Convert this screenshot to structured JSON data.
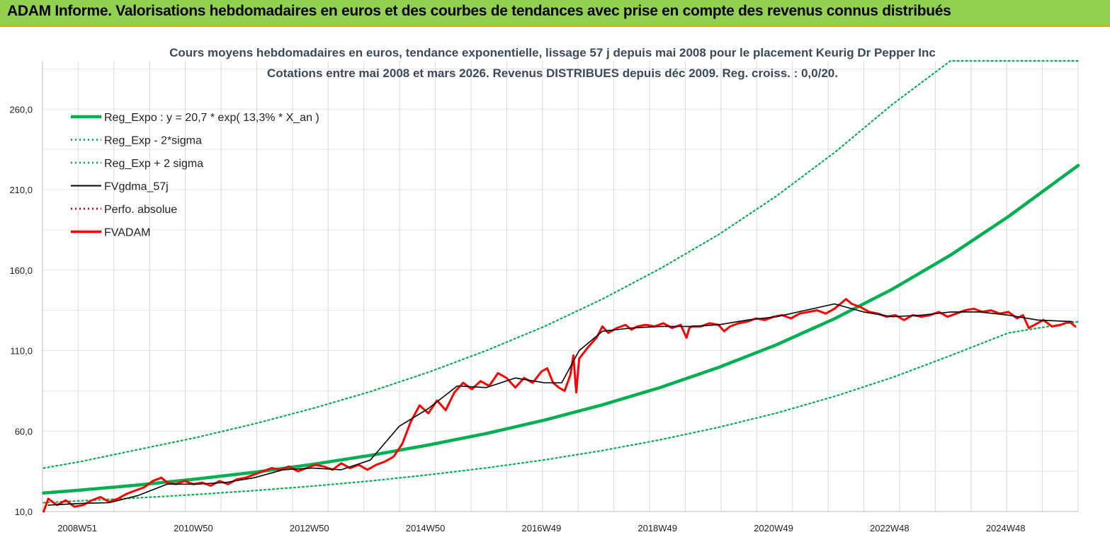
{
  "header": {
    "title": "ADAM Informe. Valorisations hebdomadaires en euros et des courbes de tendances avec prise en compte des revenus connus distribués"
  },
  "chart_data": {
    "type": "line",
    "title": "Cours moyens hebdomadaires en euros, tendance exponentielle, lissage 57 j depuis mai 2008 pour le placement Keurig Dr Pepper Inc",
    "subtitle": "Cotations entre mai 2008 et mars 2026. Revenus DISTRIBUES depuis déc 2009. Reg. croiss. : 0,0/20.",
    "xlabel": "",
    "ylabel": "",
    "ylim": [
      10,
      290
    ],
    "yticks": [
      "10,0",
      "60,0",
      "110,0",
      "160,0",
      "210,0",
      "260,0"
    ],
    "yticks_values": [
      10,
      60,
      110,
      160,
      210,
      260
    ],
    "xlim": [
      2008.35,
      2026.2
    ],
    "xticks": [
      "2008W51",
      "2010W50",
      "2012W50",
      "2014W50",
      "2016W49",
      "2018W49",
      "2020W49",
      "2022W48",
      "2024W48"
    ],
    "xticks_values": [
      2008.95,
      2010.95,
      2012.95,
      2014.95,
      2016.95,
      2018.95,
      2020.95,
      2022.95,
      2024.95
    ],
    "grid": true,
    "legend_position": "top-left",
    "series": [
      {
        "name": "Reg_Expo : y = 20,7 * exp( 13,3% *  X_an )",
        "color": "#00b050",
        "style": "solid-thick",
        "x": [
          2008.37,
          2009,
          2010,
          2011,
          2012,
          2013,
          2014,
          2015,
          2016,
          2017,
          2018,
          2019,
          2020,
          2021,
          2022,
          2023,
          2024,
          2025,
          2026.2
        ],
        "y": [
          21.5,
          23.3,
          26.5,
          30.2,
          34.4,
          39.3,
          44.9,
          51.3,
          58.5,
          66.8,
          76.3,
          87.1,
          99.5,
          113.6,
          129.8,
          148.2,
          169.3,
          193.3,
          225
        ]
      },
      {
        "name": "Reg_Exp - 2*sigma",
        "color": "#00b050",
        "style": "dotted",
        "x": [
          2008.37,
          2009,
          2010,
          2011,
          2012,
          2013,
          2014,
          2015,
          2016,
          2017,
          2018,
          2019,
          2020,
          2021,
          2022,
          2023,
          2024,
          2025,
          2026.2
        ],
        "y": [
          15.5,
          16.7,
          18.5,
          20.6,
          23,
          25.8,
          29,
          32.8,
          37.1,
          42.1,
          47.9,
          54.6,
          62.3,
          71.2,
          81.5,
          93.3,
          106.9,
          121,
          128
        ]
      },
      {
        "name": "Reg_Exp + 2 sigma",
        "color": "#00b050",
        "style": "dotted",
        "x": [
          2008.37,
          2009,
          2010,
          2011,
          2012,
          2013,
          2014,
          2015,
          2016,
          2017,
          2018,
          2019,
          2020,
          2021,
          2022,
          2023,
          2024,
          2025,
          2026.2
        ],
        "y": [
          37,
          41,
          48.5,
          56,
          64.5,
          74,
          84.5,
          96.5,
          110,
          125,
          142,
          161,
          182,
          206,
          233,
          263,
          290,
          290,
          290
        ]
      },
      {
        "name": "FVgdma_57j",
        "color": "#000000",
        "style": "solid",
        "x": [
          2008.45,
          2009,
          2009.5,
          2010,
          2010.5,
          2011,
          2011.5,
          2012,
          2012.5,
          2013,
          2013.5,
          2014,
          2014.5,
          2015,
          2015.5,
          2016,
          2016.5,
          2017,
          2017.3,
          2017.6,
          2018,
          2018.5,
          2019,
          2019.5,
          2020,
          2020.5,
          2021,
          2021.5,
          2022,
          2022.5,
          2023,
          2023.5,
          2024,
          2024.5,
          2025,
          2025.5,
          2026.1
        ],
        "y": [
          14,
          15,
          15.5,
          20,
          27,
          27,
          28,
          31,
          36,
          37,
          36,
          42,
          63,
          74,
          88,
          87,
          93,
          90,
          90,
          110,
          122,
          124,
          125,
          125,
          126,
          129,
          131,
          135,
          139,
          134,
          131,
          132,
          134,
          134,
          132,
          129,
          128
        ]
      },
      {
        "name": "Perfo. absolue",
        "color": "#c00000",
        "style": "dotted",
        "x": [],
        "y": []
      },
      {
        "name": "FVADAM",
        "color": "#ff0000",
        "style": "solid-thick",
        "x": [
          2008.37,
          2008.45,
          2008.6,
          2008.75,
          2008.9,
          2009.05,
          2009.2,
          2009.35,
          2009.5,
          2009.65,
          2009.8,
          2009.95,
          2010.1,
          2010.25,
          2010.4,
          2010.5,
          2010.65,
          2010.8,
          2010.95,
          2011.1,
          2011.25,
          2011.4,
          2011.55,
          2011.7,
          2011.85,
          2012,
          2012.15,
          2012.3,
          2012.45,
          2012.6,
          2012.75,
          2012.9,
          2013.05,
          2013.2,
          2013.35,
          2013.5,
          2013.65,
          2013.8,
          2013.95,
          2014.1,
          2014.25,
          2014.4,
          2014.55,
          2014.7,
          2014.85,
          2015,
          2015.15,
          2015.3,
          2015.45,
          2015.6,
          2015.75,
          2015.9,
          2016.05,
          2016.2,
          2016.35,
          2016.5,
          2016.65,
          2016.8,
          2016.95,
          2017.05,
          2017.15,
          2017.25,
          2017.35,
          2017.45,
          2017.5,
          2017.55,
          2017.6,
          2017.75,
          2017.9,
          2018,
          2018.1,
          2018.25,
          2018.4,
          2018.5,
          2018.6,
          2018.75,
          2018.9,
          2019.05,
          2019.2,
          2019.35,
          2019.45,
          2019.5,
          2019.55,
          2019.7,
          2019.85,
          2020,
          2020.1,
          2020.2,
          2020.35,
          2020.5,
          2020.65,
          2020.8,
          2020.95,
          2021.1,
          2021.25,
          2021.4,
          2021.55,
          2021.7,
          2021.85,
          2022,
          2022.1,
          2022.2,
          2022.3,
          2022.45,
          2022.6,
          2022.75,
          2022.9,
          2023.05,
          2023.2,
          2023.35,
          2023.5,
          2023.65,
          2023.8,
          2023.95,
          2024.1,
          2024.25,
          2024.4,
          2024.55,
          2024.7,
          2024.85,
          2025,
          2025.15,
          2025.25,
          2025.35,
          2025.45,
          2025.6,
          2025.75,
          2025.9,
          2026.05,
          2026.15
        ],
        "y": [
          10,
          18,
          14,
          17,
          13,
          14,
          17,
          19,
          16,
          18,
          21,
          23,
          25,
          29,
          31,
          28,
          27,
          29,
          27,
          28,
          26,
          29,
          27,
          30,
          31,
          33,
          35,
          37,
          36,
          38,
          35,
          37,
          39,
          38,
          36,
          40,
          37,
          39,
          36,
          39,
          41,
          44,
          52,
          66,
          76,
          71,
          79,
          73,
          84,
          90,
          86,
          91,
          88,
          96,
          93,
          87,
          93,
          90,
          97,
          99,
          90,
          87,
          85,
          95,
          107,
          84,
          105,
          112,
          118,
          125,
          121,
          124,
          126,
          123,
          125,
          126,
          125,
          127,
          124,
          126,
          118,
          124,
          125,
          125,
          127,
          126,
          122,
          125,
          127,
          128,
          130,
          129,
          131,
          132,
          130,
          133,
          134,
          135,
          133,
          136,
          139,
          142,
          139,
          137,
          134,
          133,
          131,
          132,
          129,
          132,
          131,
          132,
          134,
          131,
          133,
          135,
          136,
          134,
          135,
          133,
          134,
          130,
          132,
          124,
          126,
          129,
          125,
          126,
          128,
          125
        ]
      }
    ]
  }
}
